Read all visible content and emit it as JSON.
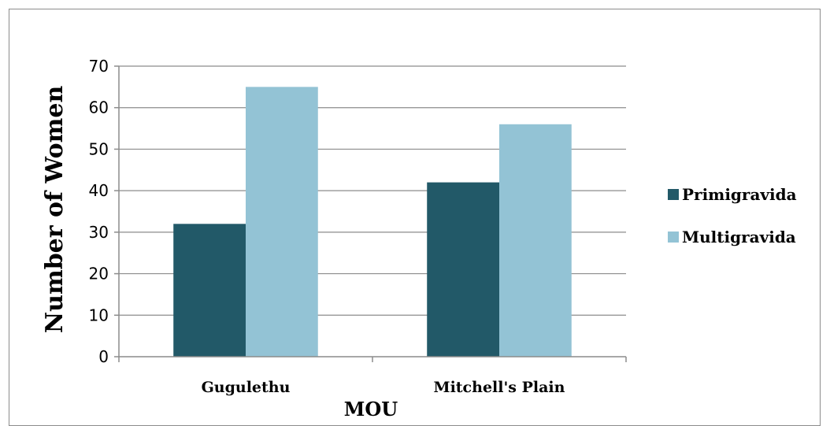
{
  "chart_data": {
    "type": "bar",
    "title": "",
    "categories": [
      "Gugulethu",
      "Mitchell's Plain"
    ],
    "series": [
      {
        "name": "Primigravida",
        "color": "#225968",
        "values": [
          32,
          42
        ]
      },
      {
        "name": "Multigravida",
        "color": "#93c3d5",
        "values": [
          65,
          56
        ]
      }
    ],
    "xlabel": "MOU",
    "ylabel": "Number of Women",
    "ylim": [
      0,
      70
    ],
    "yticks": [
      0,
      10,
      20,
      30,
      40,
      50,
      60,
      70
    ],
    "grid": true,
    "legend": "right"
  }
}
